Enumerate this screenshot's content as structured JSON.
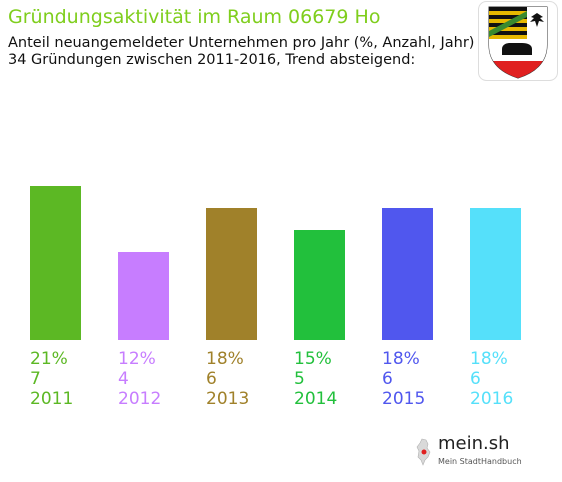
{
  "header": {
    "title": "Gründungsaktivität im Raum 06679 Ho",
    "subtitle_line1": "Anteil neuangemeldeter Unternehmen pro Jahr (%, Anzahl, Jahr)",
    "subtitle_line2": "34 Gründungen zwischen 2011-2016, Trend absteigend:"
  },
  "crest_icon": "saxony-anhalt-coat-of-arms-icon",
  "chart_data": {
    "type": "bar",
    "categories": [
      "2011",
      "2012",
      "2013",
      "2014",
      "2015",
      "2016"
    ],
    "percent_labels": [
      "21%",
      "12%",
      "18%",
      "15%",
      "18%",
      "18%"
    ],
    "counts": [
      7,
      4,
      6,
      5,
      6,
      6
    ],
    "colors": [
      "#5cb824",
      "#c77dff",
      "#a0812a",
      "#22c03c",
      "#5057ee",
      "#55e0fa"
    ],
    "ylim": [
      0,
      7
    ],
    "grid": false,
    "legend": "none"
  },
  "brand": {
    "name": "mein.sh",
    "tagline": "Mein StadtHandbuch",
    "icon": "germany-map-pin-icon"
  }
}
